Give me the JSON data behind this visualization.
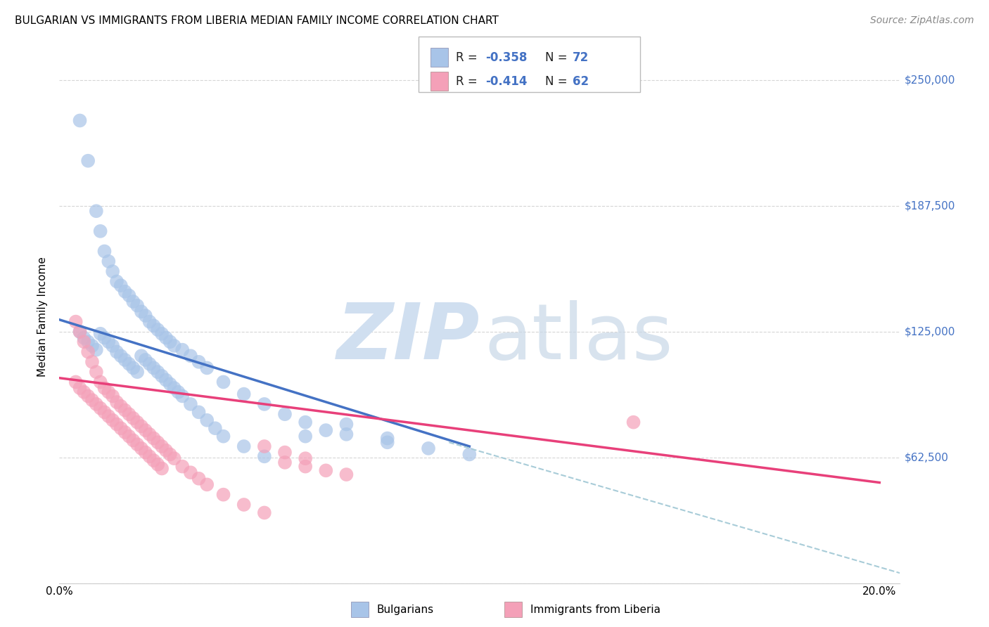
{
  "title": "BULGARIAN VS IMMIGRANTS FROM LIBERIA MEDIAN FAMILY INCOME CORRELATION CHART",
  "source": "Source: ZipAtlas.com",
  "ylabel": "Median Family Income",
  "yticks": [
    0,
    62500,
    125000,
    187500,
    250000
  ],
  "ytick_labels": [
    "",
    "$62,500",
    "$125,000",
    "$187,500",
    "$250,000"
  ],
  "blue_color": "#a8c4e8",
  "pink_color": "#f4a0b8",
  "blue_line_color": "#4472c4",
  "pink_line_color": "#e8407a",
  "dashed_line_color": "#a8ccd8",
  "watermark_zip_color": "#d0dff0",
  "watermark_atlas_color": "#c8d8e8",
  "background_color": "#ffffff",
  "grid_color": "#cccccc",
  "accent_color": "#4472c4",
  "blue_scatter_x": [
    0.005,
    0.007,
    0.009,
    0.01,
    0.011,
    0.012,
    0.013,
    0.014,
    0.015,
    0.016,
    0.017,
    0.018,
    0.019,
    0.02,
    0.021,
    0.022,
    0.023,
    0.024,
    0.025,
    0.026,
    0.027,
    0.028,
    0.03,
    0.032,
    0.034,
    0.036,
    0.04,
    0.045,
    0.05,
    0.055,
    0.06,
    0.07,
    0.08,
    0.09,
    0.1,
    0.005,
    0.006,
    0.007,
    0.008,
    0.009,
    0.01,
    0.011,
    0.012,
    0.013,
    0.014,
    0.015,
    0.016,
    0.017,
    0.018,
    0.019,
    0.02,
    0.021,
    0.022,
    0.023,
    0.024,
    0.025,
    0.026,
    0.027,
    0.028,
    0.029,
    0.03,
    0.032,
    0.034,
    0.036,
    0.038,
    0.04,
    0.045,
    0.05,
    0.06,
    0.065,
    0.07,
    0.08
  ],
  "blue_scatter_y": [
    230000,
    210000,
    185000,
    175000,
    165000,
    160000,
    155000,
    150000,
    148000,
    145000,
    143000,
    140000,
    138000,
    135000,
    133000,
    130000,
    128000,
    126000,
    124000,
    122000,
    120000,
    118000,
    116000,
    113000,
    110000,
    107000,
    100000,
    94000,
    89000,
    84000,
    80000,
    74000,
    70000,
    67000,
    64000,
    125000,
    122000,
    120000,
    118000,
    116000,
    124000,
    122000,
    120000,
    118000,
    115000,
    113000,
    111000,
    109000,
    107000,
    105000,
    113000,
    111000,
    109000,
    107000,
    105000,
    103000,
    101000,
    99000,
    97000,
    95000,
    93000,
    89000,
    85000,
    81000,
    77000,
    73000,
    68000,
    63000,
    73000,
    76000,
    79000,
    72000
  ],
  "pink_scatter_x": [
    0.004,
    0.005,
    0.006,
    0.007,
    0.008,
    0.009,
    0.01,
    0.011,
    0.012,
    0.013,
    0.014,
    0.015,
    0.016,
    0.017,
    0.018,
    0.019,
    0.02,
    0.021,
    0.022,
    0.023,
    0.024,
    0.025,
    0.026,
    0.027,
    0.028,
    0.03,
    0.032,
    0.034,
    0.036,
    0.04,
    0.045,
    0.05,
    0.055,
    0.06,
    0.065,
    0.07,
    0.004,
    0.005,
    0.006,
    0.007,
    0.008,
    0.009,
    0.01,
    0.011,
    0.012,
    0.013,
    0.014,
    0.015,
    0.016,
    0.017,
    0.018,
    0.019,
    0.02,
    0.021,
    0.022,
    0.023,
    0.024,
    0.025,
    0.14,
    0.05,
    0.055,
    0.06
  ],
  "pink_scatter_y": [
    130000,
    125000,
    120000,
    115000,
    110000,
    105000,
    100000,
    97000,
    95000,
    93000,
    90000,
    88000,
    86000,
    84000,
    82000,
    80000,
    78000,
    76000,
    74000,
    72000,
    70000,
    68000,
    66000,
    64000,
    62000,
    58000,
    55000,
    52000,
    49000,
    44000,
    39000,
    35000,
    60000,
    58000,
    56000,
    54000,
    100000,
    97000,
    95000,
    93000,
    91000,
    89000,
    87000,
    85000,
    83000,
    81000,
    79000,
    77000,
    75000,
    73000,
    71000,
    69000,
    67000,
    65000,
    63000,
    61000,
    59000,
    57000,
    80000,
    68000,
    65000,
    62000
  ],
  "xlim": [
    0.0,
    0.205
  ],
  "ylim": [
    0,
    265000
  ],
  "blue_line_x": [
    0.0,
    0.1
  ],
  "blue_line_y": [
    131000,
    68000
  ],
  "pink_line_x": [
    0.0,
    0.2
  ],
  "pink_line_y": [
    102000,
    50000
  ],
  "dashed_line_x": [
    0.095,
    0.205
  ],
  "dashed_line_y": [
    70000,
    5000
  ]
}
